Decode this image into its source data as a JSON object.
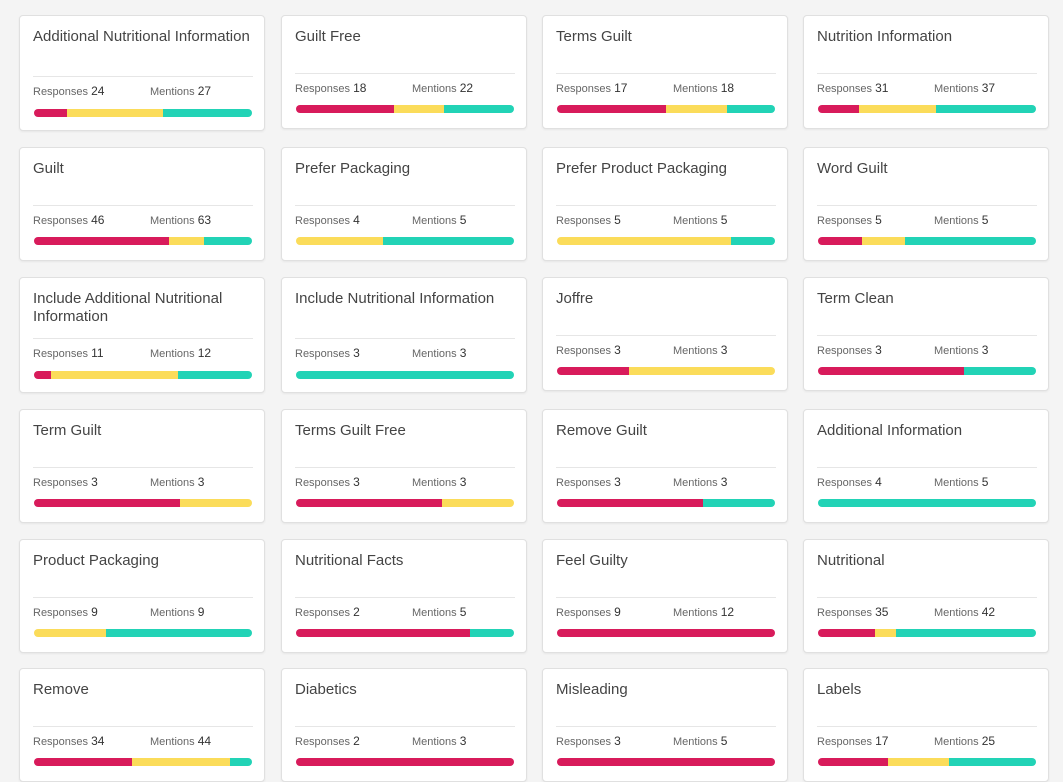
{
  "labels": {
    "responses": "Responses",
    "mentions": "Mentions"
  },
  "colors": {
    "negative": "#d81b5b",
    "neutral": "#fbdc5a",
    "positive": "#22d3b6"
  },
  "cards": [
    {
      "title": "Additional Nutritional Information",
      "responses": "24",
      "mentions": "27",
      "bar": [
        0.15,
        0.44,
        0.41
      ]
    },
    {
      "title": "Guilt Free",
      "responses": "18",
      "mentions": "22",
      "bar": [
        0.45,
        0.23,
        0.32
      ]
    },
    {
      "title": "Terms Guilt",
      "responses": "17",
      "mentions": "18",
      "bar": [
        0.5,
        0.28,
        0.22
      ]
    },
    {
      "title": "Nutrition Information",
      "responses": "31",
      "mentions": "37",
      "bar": [
        0.19,
        0.35,
        0.46
      ]
    },
    {
      "title": "Guilt",
      "responses": "46",
      "mentions": "63",
      "bar": [
        0.62,
        0.16,
        0.22
      ]
    },
    {
      "title": "Prefer Packaging",
      "responses": "4",
      "mentions": "5",
      "bar": [
        0,
        0.4,
        0.6
      ]
    },
    {
      "title": "Prefer Product Packaging",
      "responses": "5",
      "mentions": "5",
      "bar": [
        0,
        0.8,
        0.2
      ]
    },
    {
      "title": "Word Guilt",
      "responses": "5",
      "mentions": "5",
      "bar": [
        0.2,
        0.2,
        0.6
      ]
    },
    {
      "title": "Include Additional Nutritional Information",
      "responses": "11",
      "mentions": "12",
      "bar": [
        0.08,
        0.58,
        0.34
      ]
    },
    {
      "title": "Include Nutritional Information",
      "responses": "3",
      "mentions": "3",
      "bar": [
        0,
        0,
        1
      ]
    },
    {
      "title": "Joffre",
      "responses": "3",
      "mentions": "3",
      "bar": [
        0.33,
        0.67,
        0
      ]
    },
    {
      "title": "Term Clean",
      "responses": "3",
      "mentions": "3",
      "bar": [
        0.67,
        0,
        0.33
      ]
    },
    {
      "title": "Term Guilt",
      "responses": "3",
      "mentions": "3",
      "bar": [
        0.67,
        0.33,
        0
      ]
    },
    {
      "title": "Terms Guilt Free",
      "responses": "3",
      "mentions": "3",
      "bar": [
        0.67,
        0.33,
        0
      ]
    },
    {
      "title": "Remove Guilt",
      "responses": "3",
      "mentions": "3",
      "bar": [
        0.67,
        0,
        0.33
      ]
    },
    {
      "title": "Additional Information",
      "responses": "4",
      "mentions": "5",
      "bar": [
        0,
        0,
        1
      ]
    },
    {
      "title": "Product Packaging",
      "responses": "9",
      "mentions": "9",
      "bar": [
        0,
        0.33,
        0.67
      ]
    },
    {
      "title": "Nutritional Facts",
      "responses": "2",
      "mentions": "5",
      "bar": [
        0.8,
        0,
        0.2
      ]
    },
    {
      "title": "Feel Guilty",
      "responses": "9",
      "mentions": "12",
      "bar": [
        1,
        0,
        0
      ]
    },
    {
      "title": "Nutritional",
      "responses": "35",
      "mentions": "42",
      "bar": [
        0.26,
        0.1,
        0.64
      ]
    },
    {
      "title": "Remove",
      "responses": "34",
      "mentions": "44",
      "bar": [
        0.45,
        0.45,
        0.1
      ]
    },
    {
      "title": "Diabetics",
      "responses": "2",
      "mentions": "3",
      "bar": [
        1,
        0,
        0
      ]
    },
    {
      "title": "Misleading",
      "responses": "3",
      "mentions": "5",
      "bar": [
        1,
        0,
        0
      ]
    },
    {
      "title": "Labels",
      "responses": "17",
      "mentions": "25",
      "bar": [
        0.32,
        0.28,
        0.4
      ]
    }
  ]
}
